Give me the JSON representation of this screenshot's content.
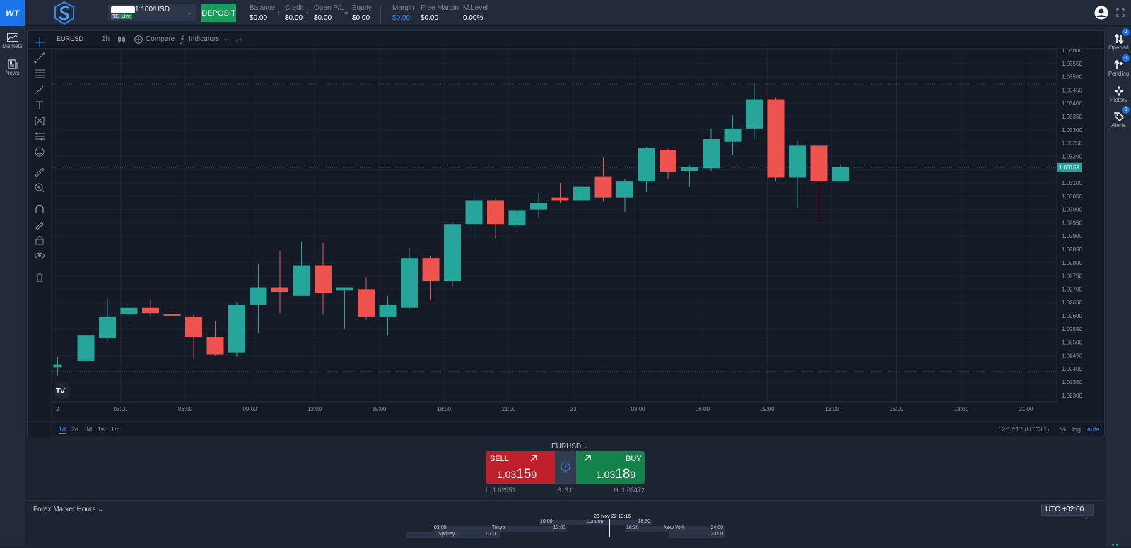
{
  "header": {
    "account_name": "1:100/USD",
    "account_tag": "TE",
    "account_status": "Live",
    "deposit_label": "DEPOSIT",
    "stats": [
      {
        "label": "Balance",
        "value": "$0.00"
      },
      {
        "label": "Credit",
        "value": "$0.00"
      },
      {
        "label": "Open P/L",
        "value": "$0.00"
      },
      {
        "label": "Equity",
        "value": "$0.00"
      },
      {
        "label": "Margin",
        "value": "$0.00"
      },
      {
        "label": "Free Margin",
        "value": "$0.00"
      },
      {
        "label": "M.Level",
        "value": "0.00%"
      }
    ],
    "operators": [
      "+",
      "+",
      "="
    ]
  },
  "logo_text": "WT",
  "left_nav": [
    {
      "label": "Markets",
      "icon": "chart-line-icon"
    },
    {
      "label": "News",
      "icon": "newspaper-icon"
    }
  ],
  "right_nav": [
    {
      "label": "Opened",
      "icon": "arrows-updown-icon",
      "badge": "0"
    },
    {
      "label": "Pending",
      "icon": "pending-arrows-icon",
      "badge": "0"
    },
    {
      "label": "History",
      "icon": "history-icon",
      "badge": ""
    },
    {
      "label": "Alerts",
      "icon": "alert-tag-icon",
      "badge": "0"
    }
  ],
  "chart_toolbar": {
    "symbol": "EURUSD",
    "interval": "1h",
    "compare": "Compare",
    "indicators": "Indicators"
  },
  "ranges": [
    "1d",
    "2d",
    "3d",
    "1w",
    "1m"
  ],
  "active_range": "1d",
  "clock": "12:17:17 (UTC+1)",
  "scale_opts": [
    "%",
    "log",
    "auto"
  ],
  "chart_data": {
    "type": "candlestick",
    "symbol": "EURUSD",
    "interval": "1h",
    "colors": {
      "up": "#26a69a",
      "down": "#ef5350"
    },
    "ylim": [
      1.0227,
      1.036
    ],
    "y_ticks": [
      "1.03600",
      "1.03550",
      "1.03500",
      "1.03450",
      "1.03400",
      "1.03350",
      "1.03300",
      "1.03250",
      "1.03200",
      "1.03150",
      "1.03100",
      "1.03050",
      "1.03000",
      "1.02950",
      "1.02900",
      "1.02850",
      "1.02800",
      "1.02750",
      "1.02700",
      "1.02650",
      "1.02600",
      "1.02550",
      "1.02500",
      "1.02450",
      "1.02400",
      "1.02350",
      "1.02300"
    ],
    "x_ticks": [
      "2",
      "03:00",
      "06:00",
      "09:00",
      "12:00",
      "15:00",
      "18:00",
      "21:00",
      "23",
      "03:00",
      "06:00",
      "09:00",
      "12:00",
      "15:00",
      "18:00",
      "21:00"
    ],
    "x_span_hours": 46,
    "last_price": "1.03159",
    "last_price_value": 1.03159,
    "hlines": [
      1.03472,
      1.02389
    ],
    "candles": [
      {
        "t": -0.05,
        "o": 1.02405,
        "h": 1.02445,
        "l": 1.02375,
        "c": 1.02415
      },
      {
        "t": 1,
        "o": 1.0243,
        "h": 1.0254,
        "l": 1.0243,
        "c": 1.02525
      },
      {
        "t": 2,
        "o": 1.02515,
        "h": 1.02665,
        "l": 1.02505,
        "c": 1.02595
      },
      {
        "t": 3,
        "o": 1.02605,
        "h": 1.0265,
        "l": 1.0257,
        "c": 1.0263
      },
      {
        "t": 4,
        "o": 1.0263,
        "h": 1.0266,
        "l": 1.026,
        "c": 1.0261
      },
      {
        "t": 5,
        "o": 1.02605,
        "h": 1.0262,
        "l": 1.0258,
        "c": 1.026
      },
      {
        "t": 6,
        "o": 1.02595,
        "h": 1.02605,
        "l": 1.0244,
        "c": 1.0252
      },
      {
        "t": 7,
        "o": 1.0252,
        "h": 1.0258,
        "l": 1.0245,
        "c": 1.02455
      },
      {
        "t": 8,
        "o": 1.0246,
        "h": 1.0265,
        "l": 1.02445,
        "c": 1.0264
      },
      {
        "t": 9,
        "o": 1.0264,
        "h": 1.02795,
        "l": 1.02535,
        "c": 1.02705
      },
      {
        "t": 10,
        "o": 1.02705,
        "h": 1.02845,
        "l": 1.0261,
        "c": 1.0269
      },
      {
        "t": 11,
        "o": 1.02675,
        "h": 1.0288,
        "l": 1.02675,
        "c": 1.0279
      },
      {
        "t": 12,
        "o": 1.0279,
        "h": 1.02875,
        "l": 1.02605,
        "c": 1.02685
      },
      {
        "t": 13,
        "o": 1.02695,
        "h": 1.02705,
        "l": 1.0255,
        "c": 1.02705
      },
      {
        "t": 14,
        "o": 1.027,
        "h": 1.02745,
        "l": 1.02585,
        "c": 1.02595
      },
      {
        "t": 15,
        "o": 1.02595,
        "h": 1.02675,
        "l": 1.02525,
        "c": 1.0264
      },
      {
        "t": 16,
        "o": 1.0263,
        "h": 1.02855,
        "l": 1.0262,
        "c": 1.02815
      },
      {
        "t": 17,
        "o": 1.02815,
        "h": 1.02825,
        "l": 1.0266,
        "c": 1.0273
      },
      {
        "t": 18,
        "o": 1.0273,
        "h": 1.0295,
        "l": 1.0271,
        "c": 1.02945
      },
      {
        "t": 19,
        "o": 1.02945,
        "h": 1.03065,
        "l": 1.0288,
        "c": 1.03035
      },
      {
        "t": 20,
        "o": 1.03035,
        "h": 1.0304,
        "l": 1.0289,
        "c": 1.02945
      },
      {
        "t": 21,
        "o": 1.0294,
        "h": 1.0301,
        "l": 1.02925,
        "c": 1.02995
      },
      {
        "t": 22,
        "o": 1.03,
        "h": 1.0306,
        "l": 1.0297,
        "c": 1.03025
      },
      {
        "t": 23,
        "o": 1.03045,
        "h": 1.031,
        "l": 1.03025,
        "c": 1.03035
      },
      {
        "t": 24,
        "o": 1.03035,
        "h": 1.03085,
        "l": 1.0303,
        "c": 1.03085
      },
      {
        "t": 25,
        "o": 1.03125,
        "h": 1.03195,
        "l": 1.0303,
        "c": 1.03045
      },
      {
        "t": 26,
        "o": 1.03045,
        "h": 1.03115,
        "l": 1.0299,
        "c": 1.03105
      },
      {
        "t": 27,
        "o": 1.03105,
        "h": 1.03235,
        "l": 1.03065,
        "c": 1.0323
      },
      {
        "t": 28,
        "o": 1.03225,
        "h": 1.0323,
        "l": 1.03115,
        "c": 1.0314
      },
      {
        "t": 29,
        "o": 1.03145,
        "h": 1.03165,
        "l": 1.03085,
        "c": 1.0316
      },
      {
        "t": 30,
        "o": 1.03155,
        "h": 1.03305,
        "l": 1.03145,
        "c": 1.03265
      },
      {
        "t": 31,
        "o": 1.03255,
        "h": 1.03355,
        "l": 1.03205,
        "c": 1.03305
      },
      {
        "t": 32,
        "o": 1.03305,
        "h": 1.03472,
        "l": 1.03265,
        "c": 1.03415
      },
      {
        "t": 33,
        "o": 1.03415,
        "h": 1.0342,
        "l": 1.03105,
        "c": 1.0312
      },
      {
        "t": 34,
        "o": 1.0312,
        "h": 1.0326,
        "l": 1.03005,
        "c": 1.0324
      },
      {
        "t": 35,
        "o": 1.0324,
        "h": 1.03245,
        "l": 1.02951,
        "c": 1.03105
      },
      {
        "t": 36,
        "o": 1.03105,
        "h": 1.0317,
        "l": 1.03105,
        "c": 1.03159
      }
    ]
  },
  "trade": {
    "symbol": "EURUSD",
    "sell_label": "SELL",
    "sell_price_prefix": "1.03",
    "sell_price_big": "15",
    "sell_price_suffix": "9",
    "buy_label": "BUY",
    "buy_price_prefix": "1.03",
    "buy_price_big": "18",
    "buy_price_suffix": "9",
    "low": "L: 1.02951",
    "spread": "S: 3.0",
    "high": "H: 1.03472"
  },
  "market_hours": {
    "title": "Forex Market Hours",
    "timezone": "UTC +02:00",
    "now": "23-Nov-22 13:16",
    "sessions": [
      {
        "name": "London",
        "start": "10:00",
        "end": "18:30"
      },
      {
        "name": "Tokyo",
        "start": "02:00",
        "end": "12:00"
      },
      {
        "name": "New York",
        "start": "16:30",
        "end": "24:00"
      },
      {
        "name": "Sydney",
        "start": "",
        "end": "07:00"
      },
      {
        "name": "",
        "start": "",
        "end": "23:00"
      }
    ]
  }
}
